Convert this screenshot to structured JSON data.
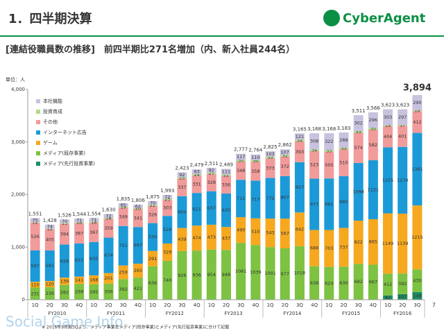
{
  "header": {
    "title": "1．四半期決算",
    "logo": "CyberAgent"
  },
  "chart_data": {
    "type": "stacked-bar",
    "title": "[連結役職員数の推移]　前四半期比271名増加（内、新入社員244名）",
    "unit": "単位：人",
    "categories": [
      "1Q",
      "2Q",
      "3Q",
      "4Q",
      "1Q",
      "2Q",
      "3Q",
      "4Q",
      "1Q",
      "2Q",
      "3Q",
      "4Q",
      "1Q",
      "2Q",
      "3Q",
      "4Q",
      "1Q",
      "2Q",
      "3Q",
      "4Q",
      "1Q",
      "2Q",
      "3Q",
      "4Q",
      "1Q",
      "2Q",
      "3Q"
    ],
    "groups": [
      {
        "label": "FY2010",
        "size": 4
      },
      {
        "label": "FY2011",
        "size": 4
      },
      {
        "label": "FY2012",
        "size": 4
      },
      {
        "label": "FY2013",
        "size": 4
      },
      {
        "label": "FY2014",
        "size": 4
      },
      {
        "label": "FY2015",
        "size": 4
      },
      {
        "label": "FY2016",
        "size": 3
      }
    ],
    "series": [
      {
        "name": "本社機能",
        "color": "#c8c2de",
        "values": [
          75,
          74,
          70,
          71,
          71,
          72,
          65,
          62,
          70,
          72,
          92,
          93,
          92,
          111,
          117,
          110,
          103,
          107,
          121,
          308,
          322,
          288,
          302,
          296,
          303,
          297,
          290
        ]
      },
      {
        "name": "投資育成",
        "color": "#b3d88c",
        "values": [
          12,
          12,
          13,
          16,
          18,
          18,
          19,
          20,
          22,
          23,
          25,
          24,
          27,
          22,
          30,
          30,
          33,
          32,
          34,
          34,
          33,
          33,
          33,
          35,
          18,
          17,
          18
        ]
      },
      {
        "name": "その他",
        "color": "#f19b9b",
        "values": [
          526,
          405,
          394,
          387,
          367,
          359,
          349,
          341,
          326,
          303,
          337,
          331,
          328,
          336,
          348,
          358,
          373,
          372,
          393,
          523,
          505,
          510,
          574,
          582,
          404,
          401,
          412
        ]
      },
      {
        "name": "インターネット広告",
        "color": "#1c9ad8",
        "values": [
          597,
          581,
          628,
          631,
          635,
          674,
          751,
          697,
          530,
          526,
          604,
          621,
          637,
          635,
          711,
          717,
          772,
          807,
          957,
          977,
          981,
          985,
          1098,
          1121,
          1255,
          1270,
          1381
        ]
      },
      {
        "name": "ゲーム",
        "color": "#f6a81f",
        "values": [
          110,
          120,
          139,
          141,
          168,
          201,
          259,
          265,
          291,
          329,
          439,
          474,
          473,
          437,
          490,
          510,
          543,
          567,
          642,
          688,
          703,
          737,
          822,
          865,
          1149,
          1139,
          1215
        ]
      },
      {
        "name": "メディア(既存事業)",
        "color": "#7dc242",
        "values": [
          231,
          236,
          282,
          298,
          295,
          306,
          392,
          421,
          636,
          740,
          926,
          936,
          954,
          948,
          1081,
          1039,
          1001,
          977,
          1018,
          638,
          624,
          630,
          682,
          667,
          412,
          392,
          430
        ]
      },
      {
        "name": "メディア(先行投資事業)",
        "color": "#1d8f62",
        "values": [
          null,
          null,
          null,
          null,
          null,
          null,
          null,
          null,
          null,
          null,
          null,
          null,
          null,
          null,
          null,
          null,
          null,
          null,
          null,
          null,
          null,
          null,
          null,
          null,
          82,
          107,
          148
        ]
      }
    ],
    "totals": {
      "values": [
        1551,
        1428,
        1526,
        1544,
        1554,
        1630,
        1835,
        1806,
        1875,
        1993,
        2423,
        2479,
        2511,
        2489,
        2777,
        2764,
        2825,
        2862,
        3165,
        3168,
        3168,
        3183,
        3511,
        3566,
        3623,
        3623,
        3894
      ],
      "value_labels": [
        "1,551",
        "1,428",
        "1,526",
        "1,544",
        "1,554",
        "1,630",
        "1,835",
        "1,806",
        "1,875",
        "1,993",
        "2,423",
        "2,479",
        "2,511",
        "2,489",
        "2,777",
        "2,764",
        "2,825",
        "2,862",
        "3,165",
        "3,168",
        "3,168",
        "3,183",
        "3,511",
        "3,566",
        "3,623",
        "3,623",
        "3,894"
      ]
    },
    "ylim": [
      0,
      4000
    ],
    "yticks": [
      0,
      {
        "value": 1000,
        "label": "1,000"
      },
      {
        "value": 2000,
        "label": "2,000"
      },
      {
        "value": 3000,
        "label": "3,000"
      },
      {
        "value": 4000,
        "label": "4,000"
      }
    ],
    "grid": false,
    "legend": "upper left",
    "footnote": "※ 2016年9月期3Qより、メディア事業をメディア(既存事業)とメディア(先行投資事業)に分けて記載"
  },
  "page_number": "7",
  "watermark": "Social Game Info"
}
